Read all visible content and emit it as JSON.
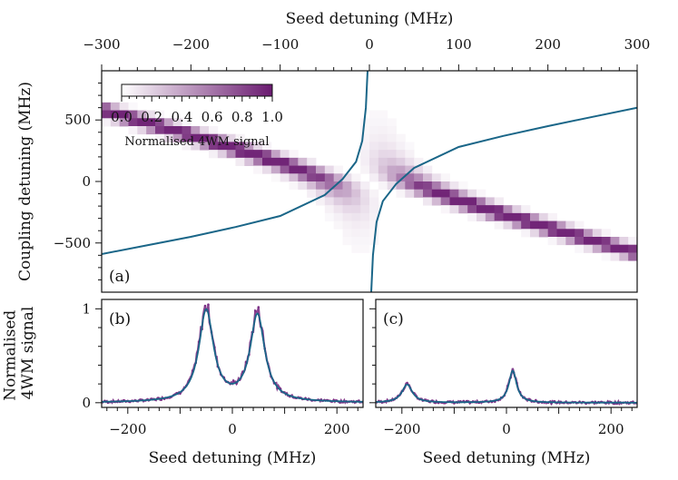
{
  "figure": {
    "colorbar": {
      "label": "Normalised 4WM signal",
      "ticks": [
        "0.0",
        "0.2",
        "0.4",
        "0.6",
        "0.8",
        "1.0"
      ],
      "color_low": "#ffffff",
      "color_high": "#6a1a70"
    },
    "curve_color": "#1a6688",
    "data_color": "#7b2f85"
  },
  "chart_data": [
    {
      "id": "a",
      "panel_label": "(a)",
      "type": "heatmap",
      "xlabel": "Seed detuning (MHz)",
      "ylabel": "Coupling detuning (MHz)",
      "xlim": [
        -300,
        300
      ],
      "ylim": [
        -900,
        900
      ],
      "xticks": [
        -300,
        -200,
        -100,
        0,
        100,
        200,
        300
      ],
      "xtick_labels": [
        "−300",
        "−200",
        "−100",
        "0",
        "100",
        "200",
        "300"
      ],
      "yticks": [
        -500,
        0,
        500
      ],
      "ytick_labels": [
        "−500",
        "0",
        "500"
      ],
      "colorbar_range": [
        0,
        1
      ],
      "heatmap_model": {
        "description": "normalised 4WM signal peaks along two avoided-crossing branches",
        "branch_offset_MHz": 50,
        "coupling_scale": 2
      },
      "curves": [
        {
          "name": "upper branch",
          "points": [
            [
              -300,
              -590
            ],
            [
              -250,
              -520
            ],
            [
              -200,
              -450
            ],
            [
              -150,
              -370
            ],
            [
              -100,
              -280
            ],
            [
              -50,
              -110
            ],
            [
              -30,
              20
            ],
            [
              -15,
              160
            ],
            [
              -8,
              330
            ],
            [
              -4,
              600
            ],
            [
              -2,
              900
            ]
          ]
        },
        {
          "name": "lower branch",
          "points": [
            [
              2,
              -900
            ],
            [
              4,
              -600
            ],
            [
              8,
              -330
            ],
            [
              15,
              -160
            ],
            [
              30,
              -20
            ],
            [
              50,
              110
            ],
            [
              100,
              280
            ],
            [
              150,
              370
            ],
            [
              200,
              450
            ],
            [
              250,
              525
            ],
            [
              300,
              600
            ]
          ]
        }
      ]
    },
    {
      "id": "b",
      "panel_label": "(b)",
      "type": "line",
      "xlabel": "Seed detuning (MHz)",
      "ylabel": "Normalised 4WM signal",
      "xlim": [
        -250,
        250
      ],
      "ylim": [
        -0.05,
        1.1
      ],
      "xticks": [
        -200,
        0,
        200
      ],
      "xtick_labels": [
        "−200",
        "0",
        "200"
      ],
      "yticks": [
        0,
        1
      ],
      "ytick_labels": [
        "0",
        "1"
      ],
      "peaks": [
        {
          "center": -50,
          "amplitude": 1.0,
          "hwhm": 17
        },
        {
          "center": 48,
          "amplitude": 0.95,
          "hwhm": 17
        }
      ]
    },
    {
      "id": "c",
      "panel_label": "(c)",
      "type": "line",
      "xlabel": "Seed detuning (MHz)",
      "ylabel": "",
      "xlim": [
        -250,
        250
      ],
      "ylim": [
        -0.05,
        1.1
      ],
      "xticks": [
        -200,
        0,
        200
      ],
      "xtick_labels": [
        "−200",
        "0",
        "200"
      ],
      "yticks": [
        0,
        1
      ],
      "ytick_labels": [
        "",
        ""
      ],
      "peaks": [
        {
          "center": -190,
          "amplitude": 0.2,
          "hwhm": 12
        },
        {
          "center": 12,
          "amplitude": 0.35,
          "hwhm": 9
        }
      ]
    }
  ]
}
